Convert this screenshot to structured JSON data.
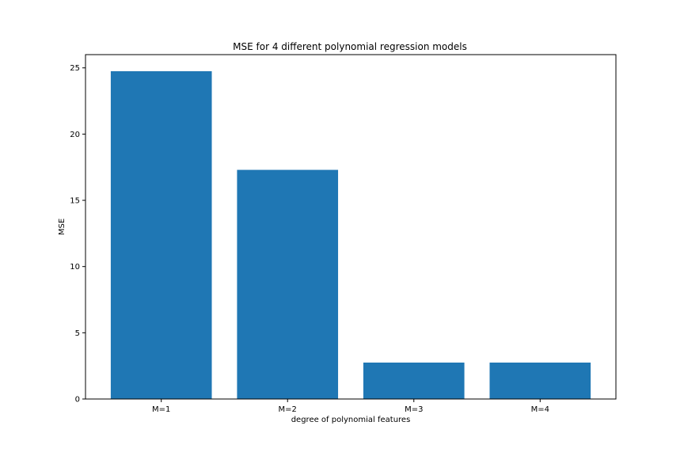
{
  "chart_data": {
    "type": "bar",
    "title": "MSE for 4 different polynomial regression models",
    "xlabel": "degree of polynomial features",
    "ylabel": "MSE",
    "categories": [
      "M=1",
      "M=2",
      "M=3",
      "M=4"
    ],
    "values": [
      24.75,
      17.3,
      2.75,
      2.75
    ],
    "ylim": [
      0,
      26.0
    ],
    "yticks": [
      0,
      5,
      10,
      15,
      20,
      25
    ],
    "bar_color": "#1f77b4",
    "grid": false,
    "legend": "none"
  }
}
